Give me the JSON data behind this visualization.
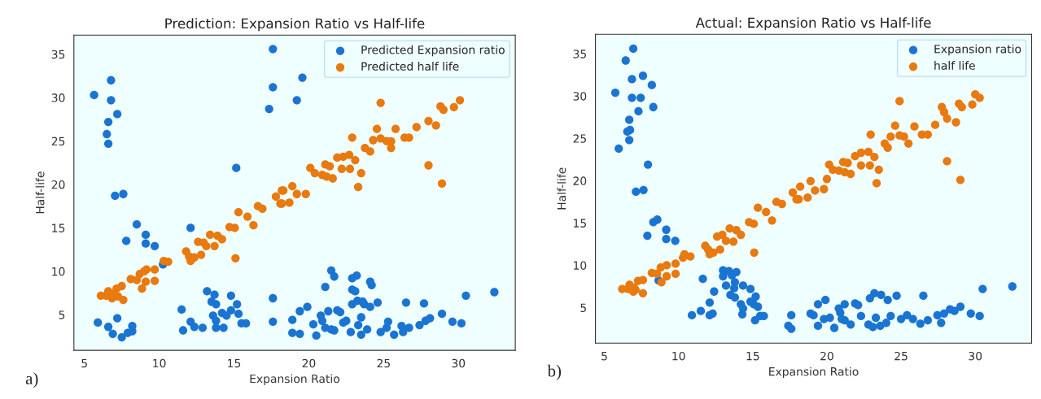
{
  "chart_data": [
    {
      "type": "scatter",
      "title": "Prediction: Expansion Ratio vs Half-life",
      "xlabel": "Expansion Ratio",
      "ylabel": "Half-life",
      "annotations": [
        "a)"
      ],
      "xlim": [
        4.3,
        33.8
      ],
      "ylim": [
        0.9,
        37.2
      ],
      "xticks": [
        5,
        10,
        15,
        20,
        25,
        30
      ],
      "yticks": [
        5,
        10,
        15,
        20,
        25,
        30,
        35
      ],
      "grid": false,
      "legend": "top right",
      "marker": "circle",
      "series": [
        {
          "name": "Predicted Expansion ratio",
          "color": "#1a74d2",
          "x": [
            5.65,
            6.78,
            6.78,
            7.2,
            6.6,
            6.5,
            6.6,
            7.05,
            7.6,
            8.5,
            7.8,
            9.1,
            9.1,
            9.7,
            10.25,
            5.9,
            6.6,
            6.9,
            7.2,
            7.5,
            7.9,
            8.2,
            8.2,
            11.5,
            11.6,
            12.1,
            12.1,
            12.35,
            12.9,
            13.2,
            13.7,
            13.5,
            13.8,
            13.6,
            13.8,
            13.8,
            14.2,
            14.3,
            14.5,
            14.8,
            14.8,
            15.2,
            15.3,
            15.15,
            15.5,
            15.8,
            17.6,
            17.6,
            17.35,
            17.6,
            17.6,
            19.2,
            19.57,
            21.5,
            21.7,
            21.1,
            22.9,
            23.2,
            22.9,
            23.1,
            24.1,
            24.2,
            30.5,
            32.4,
            19.4,
            19.9,
            18.9,
            18.9,
            19.4,
            20.3,
            20.5,
            20.8,
            20.9,
            21.3,
            21.1,
            21.5,
            21.7,
            21.9,
            22.1,
            22.3,
            22.5,
            22.8,
            22.9,
            23.25,
            23.3,
            23.6,
            23.5,
            23.5,
            23.7,
            23.9,
            24.1,
            24.6,
            24.8,
            25.3,
            25.2,
            25.7,
            26.2,
            26.5,
            26.7,
            26.3,
            27.4,
            27.8,
            27.7,
            28.1,
            28.9,
            29.6,
            30.2
          ],
          "values": [
            30.3,
            32.0,
            29.7,
            28.1,
            27.2,
            25.8,
            24.7,
            18.7,
            18.9,
            15.4,
            13.5,
            14.2,
            13.2,
            12.9,
            10.8,
            4.1,
            3.6,
            2.8,
            4.6,
            2.4,
            2.9,
            3.7,
            3.1,
            5.6,
            3.2,
            15.0,
            4.2,
            3.6,
            3.5,
            7.7,
            7.3,
            6.5,
            6.2,
            4.9,
            4.3,
            3.5,
            5.2,
            3.5,
            4.9,
            7.2,
            5.5,
            6.2,
            5.1,
            21.9,
            4.0,
            4.0,
            35.6,
            31.2,
            28.7,
            6.9,
            4.2,
            29.7,
            32.3,
            10.1,
            9.4,
            8.2,
            9.2,
            9.5,
            7.9,
            7.7,
            8.8,
            8.4,
            7.2,
            7.6,
            5.4,
            5.9,
            4.4,
            2.9,
            2.8,
            3.9,
            2.6,
            4.9,
            4.3,
            5.4,
            3.5,
            3.3,
            3.2,
            5.5,
            5.3,
            4.1,
            4.3,
            3.0,
            6.2,
            6.6,
            3.8,
            6.5,
            4.7,
            2.7,
            6.2,
            3.3,
            5.9,
            6.4,
            3.0,
            4.2,
            3.5,
            2.7,
            3.7,
            6.4,
            3.5,
            3.0,
            3.8,
            4.3,
            6.3,
            4.6,
            5.1,
            4.2,
            4.0
          ]
        },
        {
          "name": "Predicted half life",
          "color": "#e87a10",
          "x": [
            6.1,
            6.45,
            6.6,
            6.9,
            6.85,
            7.15,
            7.25,
            7.5,
            7.6,
            8.1,
            8.5,
            8.7,
            8.85,
            9.0,
            9.15,
            9.1,
            9.7,
            9.7,
            10.3,
            10.6,
            11.8,
            12.0,
            12.1,
            12.35,
            12.8,
            12.6,
            12.97,
            13.15,
            13.4,
            13.7,
            13.9,
            14.2,
            14.7,
            15.05,
            15.1,
            15.3,
            15.9,
            16.3,
            16.6,
            16.9,
            17.8,
            18.1,
            18.2,
            18.3,
            18.2,
            18.7,
            18.9,
            19.2,
            19.8,
            20.1,
            20.4,
            20.9,
            21.2,
            21.6,
            21.1,
            21.4,
            21.9,
            22.3,
            22.7,
            22.2,
            22.75,
            23.1,
            22.9,
            23.5,
            23.3,
            23.75,
            24.1,
            24.3,
            24.55,
            24.8,
            25.2,
            25.5,
            25.5,
            24.8,
            25.8,
            26.4,
            26.7,
            27.2,
            28.0,
            28.5,
            28.0,
            28.8,
            29.0,
            29.7,
            30.1,
            28.9
          ],
          "values": [
            7.2,
            7.2,
            7.7,
            7.35,
            6.9,
            8.0,
            7.1,
            8.3,
            6.7,
            9.1,
            9.0,
            9.7,
            8.0,
            10.0,
            10.2,
            8.8,
            10.2,
            8.9,
            11.2,
            11.1,
            12.3,
            11.7,
            11.2,
            11.6,
            11.9,
            13.4,
            13.3,
            12.9,
            14.2,
            12.9,
            14.1,
            13.7,
            15.1,
            15.0,
            11.5,
            16.8,
            16.3,
            15.3,
            17.5,
            17.2,
            18.6,
            17.8,
            19.3,
            19.3,
            17.8,
            17.9,
            19.8,
            18.9,
            18.9,
            21.9,
            21.3,
            21.1,
            20.9,
            20.7,
            22.3,
            22.1,
            23.1,
            23.2,
            23.4,
            21.8,
            21.8,
            22.8,
            25.4,
            21.3,
            19.7,
            24.2,
            23.8,
            25.1,
            26.4,
            25.3,
            25.0,
            24.97,
            24.2,
            29.4,
            26.4,
            25.4,
            25.4,
            26.6,
            27.3,
            26.8,
            22.2,
            29.0,
            28.6,
            28.9,
            29.7,
            20.1
          ]
        }
      ]
    },
    {
      "type": "scatter",
      "title": "Actual: Expansion Ratio vs Half-life",
      "xlabel": "Expansion Ratio",
      "ylabel": "Half-life",
      "annotations": [
        "b)"
      ],
      "xlim": [
        4.4,
        33.8
      ],
      "ylim": [
        0.8,
        37.3
      ],
      "xticks": [
        5,
        10,
        15,
        20,
        25,
        30
      ],
      "yticks": [
        5,
        10,
        15,
        20,
        25,
        30,
        35
      ],
      "grid": false,
      "legend": "top right",
      "marker": "circle",
      "series": [
        {
          "name": "Expansion ratio",
          "color": "#1a74d2",
          "x": [
            5.74,
            5.97,
            6.44,
            6.68,
            6.55,
            6.73,
            6.68,
            6.95,
            6.86,
            6.86,
            7.45,
            7.3,
            7.6,
            8.2,
            8.3,
            7.94,
            7.13,
            7.64,
            8.3,
            8.57,
            7.9,
            9.17,
            9.17,
            9.78,
            8.66,
            10.9,
            11.5,
            11.64,
            12.1,
            12.1,
            12.3,
            12.4,
            13.0,
            13.0,
            13.4,
            13.2,
            13.6,
            13.9,
            13.75,
            13.8,
            13.5,
            13.8,
            14.35,
            14.2,
            14.35,
            14.3,
            14.85,
            14.85,
            15.07,
            15.2,
            15.35,
            15.16,
            15.5,
            15.75,
            17.6,
            17.4,
            17.6,
            18.9,
            19.1,
            19.4,
            19.9,
            19.4,
            19.8,
            20.2,
            20.5,
            20.8,
            20.9,
            21.2,
            21.2,
            21.0,
            21.6,
            21.9,
            22.1,
            22.3,
            22.8,
            22.9,
            23.2,
            23.65,
            24.1,
            23.3,
            23.1,
            23.6,
            24.0,
            24.3,
            24.7,
            25.0,
            25.4,
            25.8,
            26.3,
            26.5,
            26.8,
            27.45,
            27.7,
            27.9,
            28.3,
            28.6,
            29.0,
            29.7,
            30.3,
            30.5,
            32.5
          ],
          "values": [
            30.4,
            23.8,
            34.2,
            27.2,
            25.8,
            26.0,
            24.8,
            35.6,
            32.0,
            29.8,
            29.8,
            28.2,
            32.4,
            31.3,
            28.7,
            21.9,
            18.7,
            18.9,
            15.1,
            15.4,
            13.5,
            14.2,
            13.1,
            12.9,
            8.2,
            4.1,
            4.6,
            8.4,
            5.6,
            4.1,
            4.3,
            6.9,
            9.4,
            8.7,
            9.3,
            7.6,
            8.8,
            9.2,
            7.3,
            8.0,
            6.5,
            6.2,
            7.6,
            5.4,
            4.9,
            4.2,
            7.2,
            5.7,
            5.4,
            6.3,
            5.1,
            3.5,
            4.0,
            4.0,
            4.1,
            2.85,
            2.5,
            4.3,
            4.1,
            5.4,
            5.9,
            2.85,
            3.65,
            3.8,
            2.6,
            4.9,
            4.4,
            5.4,
            3.5,
            3.65,
            3.0,
            5.5,
            5.3,
            4.0,
            3.0,
            6.1,
            6.7,
            6.5,
            5.9,
            3.8,
            2.7,
            2.85,
            3.2,
            4.0,
            6.4,
            3.65,
            4.1,
            3.65,
            3.1,
            6.4,
            3.5,
            4.1,
            3.2,
            4.3,
            4.8,
            4.6,
            5.1,
            4.3,
            4.0,
            7.2,
            7.5
          ]
        },
        {
          "name": "half life",
          "color": "#e87a10",
          "x": [
            6.2,
            6.6,
            6.7,
            7.0,
            6.95,
            7.27,
            7.6,
            7.6,
            7.1,
            8.2,
            8.55,
            8.8,
            9.2,
            8.85,
            9.2,
            9.8,
            9.8,
            10.3,
            10.4,
            10.8,
            11.8,
            12.0,
            12.1,
            12.35,
            12.8,
            12.6,
            12.95,
            13.2,
            13.45,
            13.7,
            13.9,
            14.2,
            14.75,
            15.07,
            15.1,
            15.35,
            15.9,
            16.3,
            16.6,
            16.97,
            17.7,
            17.95,
            18.2,
            18.1,
            18.7,
            18.9,
            19.2,
            19.8,
            20.0,
            20.15,
            20.4,
            20.8,
            21.2,
            21.6,
            21.1,
            21.4,
            21.9,
            22.3,
            22.8,
            22.3,
            22.9,
            23.2,
            22.95,
            23.5,
            23.35,
            23.9,
            24.1,
            24.3,
            24.6,
            24.9,
            25.2,
            25.5,
            24.9,
            25.9,
            26.4,
            26.8,
            27.3,
            27.75,
            27.9,
            28.1,
            28.7,
            28.1,
            28.9,
            29.1,
            29.8,
            30.0,
            30.3,
            29.0
          ],
          "values": [
            7.2,
            7.2,
            7.7,
            7.35,
            6.9,
            8.15,
            8.25,
            6.7,
            7.1,
            9.1,
            9.0,
            9.75,
            10.0,
            8.0,
            8.7,
            10.2,
            9.0,
            10.9,
            11.3,
            11.05,
            12.3,
            11.85,
            11.3,
            11.5,
            11.85,
            13.4,
            13.6,
            12.9,
            14.35,
            12.8,
            14.15,
            13.6,
            15.1,
            14.9,
            11.5,
            16.8,
            16.3,
            15.3,
            17.5,
            17.25,
            18.6,
            17.8,
            19.3,
            17.8,
            18.0,
            19.95,
            18.85,
            19.0,
            20.2,
            21.9,
            21.3,
            21.2,
            21.0,
            20.8,
            22.2,
            22.1,
            22.9,
            23.3,
            23.4,
            21.8,
            21.8,
            22.8,
            25.45,
            21.3,
            19.7,
            24.4,
            23.9,
            25.2,
            26.5,
            25.35,
            25.2,
            24.4,
            29.4,
            26.4,
            25.45,
            25.45,
            26.6,
            28.7,
            28.1,
            27.35,
            26.9,
            22.3,
            29.1,
            28.7,
            29.0,
            30.2,
            29.8,
            20.1
          ]
        }
      ]
    }
  ]
}
